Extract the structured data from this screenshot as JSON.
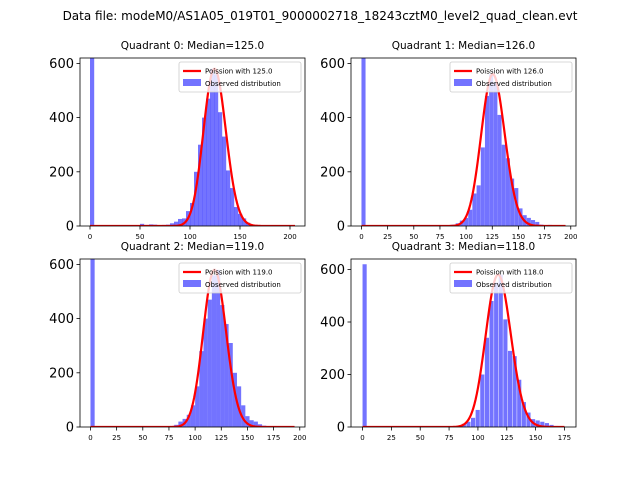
{
  "suptitle": "Data file: modeM0/AS1A05_019T01_9000002718_18243cztM0_level2_quad_clean.evt",
  "colors": {
    "bars": "#0000ff",
    "curve": "#ff0000",
    "axes": "#000000"
  },
  "chart_data": [
    {
      "type": "bar",
      "title": "Quadrant 0: Median=125.0",
      "median": 125.0,
      "legend": [
        "Poission with 125.0",
        "Observed distribution"
      ],
      "legend_position": "top-right",
      "xlim": [
        -10,
        215
      ],
      "ylim": [
        0,
        620
      ],
      "xticks": [
        0,
        50,
        100,
        150,
        200
      ],
      "yticks": [
        0,
        200,
        400,
        600
      ],
      "bin_width": 4.2,
      "bins": [
        [
          0,
          620
        ],
        [
          50,
          8
        ],
        [
          55,
          4
        ],
        [
          59,
          6
        ],
        [
          63,
          5
        ],
        [
          68,
          3
        ],
        [
          72,
          4
        ],
        [
          76,
          5
        ],
        [
          80,
          10
        ],
        [
          84,
          16
        ],
        [
          88,
          26
        ],
        [
          92,
          28
        ],
        [
          96,
          55
        ],
        [
          100,
          85
        ],
        [
          104,
          200
        ],
        [
          108,
          300
        ],
        [
          112,
          400
        ],
        [
          116,
          470
        ],
        [
          120,
          580
        ],
        [
          124,
          560
        ],
        [
          128,
          420
        ],
        [
          132,
          330
        ],
        [
          136,
          205
        ],
        [
          140,
          140
        ],
        [
          144,
          70
        ],
        [
          148,
          45
        ],
        [
          152,
          28
        ],
        [
          156,
          12
        ],
        [
          160,
          5
        ]
      ]
    },
    {
      "type": "bar",
      "title": "Quadrant 1: Median=126.0",
      "median": 126.0,
      "legend": [
        "Poission with 126.0",
        "Observed distribution"
      ],
      "legend_position": "top-right",
      "xlim": [
        -10,
        205
      ],
      "ylim": [
        0,
        620
      ],
      "xticks": [
        0,
        25,
        50,
        75,
        100,
        125,
        150,
        175,
        200
      ],
      "yticks": [
        0,
        200,
        400,
        600
      ],
      "bin_width": 3.9,
      "bins": [
        [
          0,
          620
        ],
        [
          82,
          3
        ],
        [
          86,
          5
        ],
        [
          90,
          10
        ],
        [
          94,
          20
        ],
        [
          98,
          30
        ],
        [
          102,
          60
        ],
        [
          106,
          120
        ],
        [
          110,
          150
        ],
        [
          114,
          290
        ],
        [
          118,
          480
        ],
        [
          122,
          560
        ],
        [
          126,
          530
        ],
        [
          130,
          410
        ],
        [
          134,
          300
        ],
        [
          138,
          250
        ],
        [
          142,
          175
        ],
        [
          146,
          140
        ],
        [
          150,
          65
        ],
        [
          154,
          40
        ],
        [
          158,
          30
        ],
        [
          162,
          22
        ],
        [
          166,
          15
        ],
        [
          170,
          5
        ],
        [
          174,
          3
        ],
        [
          178,
          4
        ],
        [
          182,
          2
        ]
      ]
    },
    {
      "type": "bar",
      "title": "Quadrant 2: Median=119.0",
      "median": 119.0,
      "legend": [
        "Poission with 119.0",
        "Observed distribution"
      ],
      "legend_position": "top-right",
      "xlim": [
        -10,
        205
      ],
      "ylim": [
        0,
        620
      ],
      "xticks": [
        0,
        25,
        50,
        75,
        100,
        125,
        150,
        175,
        200
      ],
      "yticks": [
        0,
        200,
        400,
        600
      ],
      "bin_width": 4.0,
      "bins": [
        [
          0,
          620
        ],
        [
          76,
          4
        ],
        [
          80,
          8
        ],
        [
          84,
          20
        ],
        [
          88,
          30
        ],
        [
          92,
          45
        ],
        [
          96,
          80
        ],
        [
          100,
          150
        ],
        [
          104,
          280
        ],
        [
          108,
          400
        ],
        [
          112,
          470
        ],
        [
          116,
          560
        ],
        [
          120,
          580
        ],
        [
          124,
          450
        ],
        [
          128,
          380
        ],
        [
          132,
          310
        ],
        [
          136,
          200
        ],
        [
          140,
          150
        ],
        [
          144,
          80
        ],
        [
          148,
          40
        ],
        [
          152,
          25
        ],
        [
          156,
          20
        ],
        [
          160,
          10
        ],
        [
          164,
          5
        ],
        [
          168,
          3
        ]
      ]
    },
    {
      "type": "bar",
      "title": "Quadrant 3: Median=118.0",
      "median": 118.0,
      "legend": [
        "Poission with 118.0",
        "Observed distribution"
      ],
      "legend_position": "top-right",
      "xlim": [
        -10,
        185
      ],
      "ylim": [
        0,
        640
      ],
      "xticks": [
        0,
        25,
        50,
        75,
        100,
        125,
        150,
        175
      ],
      "yticks": [
        0,
        200,
        400,
        600
      ],
      "bin_width": 3.6,
      "bins": [
        [
          0,
          620
        ],
        [
          82,
          5
        ],
        [
          86,
          12
        ],
        [
          90,
          20
        ],
        [
          94,
          35
        ],
        [
          98,
          65
        ],
        [
          102,
          200
        ],
        [
          106,
          340
        ],
        [
          110,
          480
        ],
        [
          114,
          550
        ],
        [
          118,
          580
        ],
        [
          122,
          410
        ],
        [
          126,
          290
        ],
        [
          130,
          270
        ],
        [
          134,
          180
        ],
        [
          138,
          95
        ],
        [
          142,
          55
        ],
        [
          146,
          30
        ],
        [
          150,
          25
        ],
        [
          154,
          20
        ],
        [
          158,
          15
        ],
        [
          162,
          8
        ],
        [
          166,
          4
        ]
      ]
    }
  ]
}
